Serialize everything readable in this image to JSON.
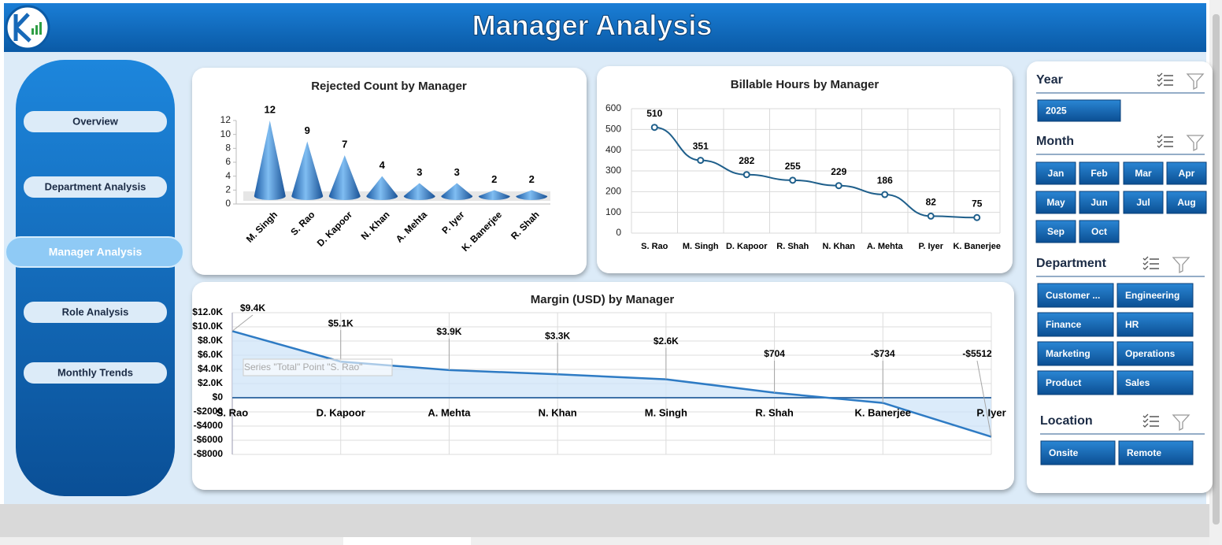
{
  "header": {
    "title": "Manager Analysis"
  },
  "nav": [
    "Overview",
    "Department Analysis",
    "Manager Analysis",
    "Role Analysis",
    "Monthly Trends"
  ],
  "chart_data": [
    {
      "type": "bar",
      "title": "Rejected Count by Manager",
      "categories": [
        "M. Singh",
        "S. Rao",
        "D. Kapoor",
        "N. Khan",
        "A. Mehta",
        "P. Iyer",
        "K. Banerjee",
        "R. Shah"
      ],
      "values": [
        12,
        9,
        7,
        4,
        3,
        3,
        2,
        2
      ],
      "color": "#2f7fd6",
      "ylim": [
        0,
        12
      ],
      "yticks": [
        0,
        2,
        4,
        6,
        8,
        10,
        12
      ],
      "grid": false
    },
    {
      "type": "line",
      "title": "Billable Hours by Manager",
      "categories": [
        "S. Rao",
        "M. Singh",
        "D. Kapoor",
        "R. Shah",
        "N. Khan",
        "A. Mehta",
        "P. Iyer",
        "K. Banerjee"
      ],
      "values": [
        510,
        351,
        282,
        255,
        229,
        186,
        82,
        75
      ],
      "color": "#1f5f8b",
      "ylim": [
        0,
        600
      ],
      "yticks": [
        0,
        100,
        200,
        300,
        400,
        500,
        600
      ],
      "grid": true
    },
    {
      "type": "area",
      "title": "Margin (USD) by Manager",
      "categories": [
        "S. Rao",
        "D. Kapoor",
        "A. Mehta",
        "N. Khan",
        "M. Singh",
        "R. Shah",
        "K. Banerjee",
        "P. Iyer"
      ],
      "values": [
        9400,
        5100,
        3900,
        3300,
        2600,
        704,
        -734,
        -5512
      ],
      "value_labels": [
        "$9.4K",
        "$5.1K",
        "$3.9K",
        "$3.3K",
        "$2.6K",
        "$704",
        "-$734",
        "-$5512"
      ],
      "color": "#2e7bc4",
      "ylim": [
        -8000,
        12000
      ],
      "yticks": [
        {
          "value": -8000,
          "label": "-$8000"
        },
        {
          "value": -6000,
          "label": "-$6000"
        },
        {
          "value": -4000,
          "label": "-$4000"
        },
        {
          "value": -2000,
          "label": "-$2000"
        },
        {
          "value": 0,
          "label": "$0"
        },
        {
          "value": 2000,
          "label": "$2.0K"
        },
        {
          "value": 4000,
          "label": "$4.0K"
        },
        {
          "value": 6000,
          "label": "$6.0K"
        },
        {
          "value": 8000,
          "label": "$8.0K"
        },
        {
          "value": 10000,
          "label": "$10.0K"
        },
        {
          "value": 12000,
          "label": "$12.0K"
        }
      ],
      "grid": true,
      "tooltip": "Series \"Total\" Point \"S. Rao\""
    }
  ],
  "slicers": [
    {
      "title": "Year",
      "items": [
        "2025"
      ]
    },
    {
      "title": "Month",
      "items": [
        "Jan",
        "Feb",
        "Mar",
        "Apr",
        "May",
        "Jun",
        "Jul",
        "Aug",
        "Sep",
        "Oct"
      ]
    },
    {
      "title": "Department",
      "items": [
        "Customer ...",
        "Engineering",
        "Finance",
        "HR",
        "Marketing",
        "Operations",
        "Product",
        "Sales"
      ]
    },
    {
      "title": "Location",
      "items": [
        "Onsite",
        "Remote"
      ]
    }
  ]
}
